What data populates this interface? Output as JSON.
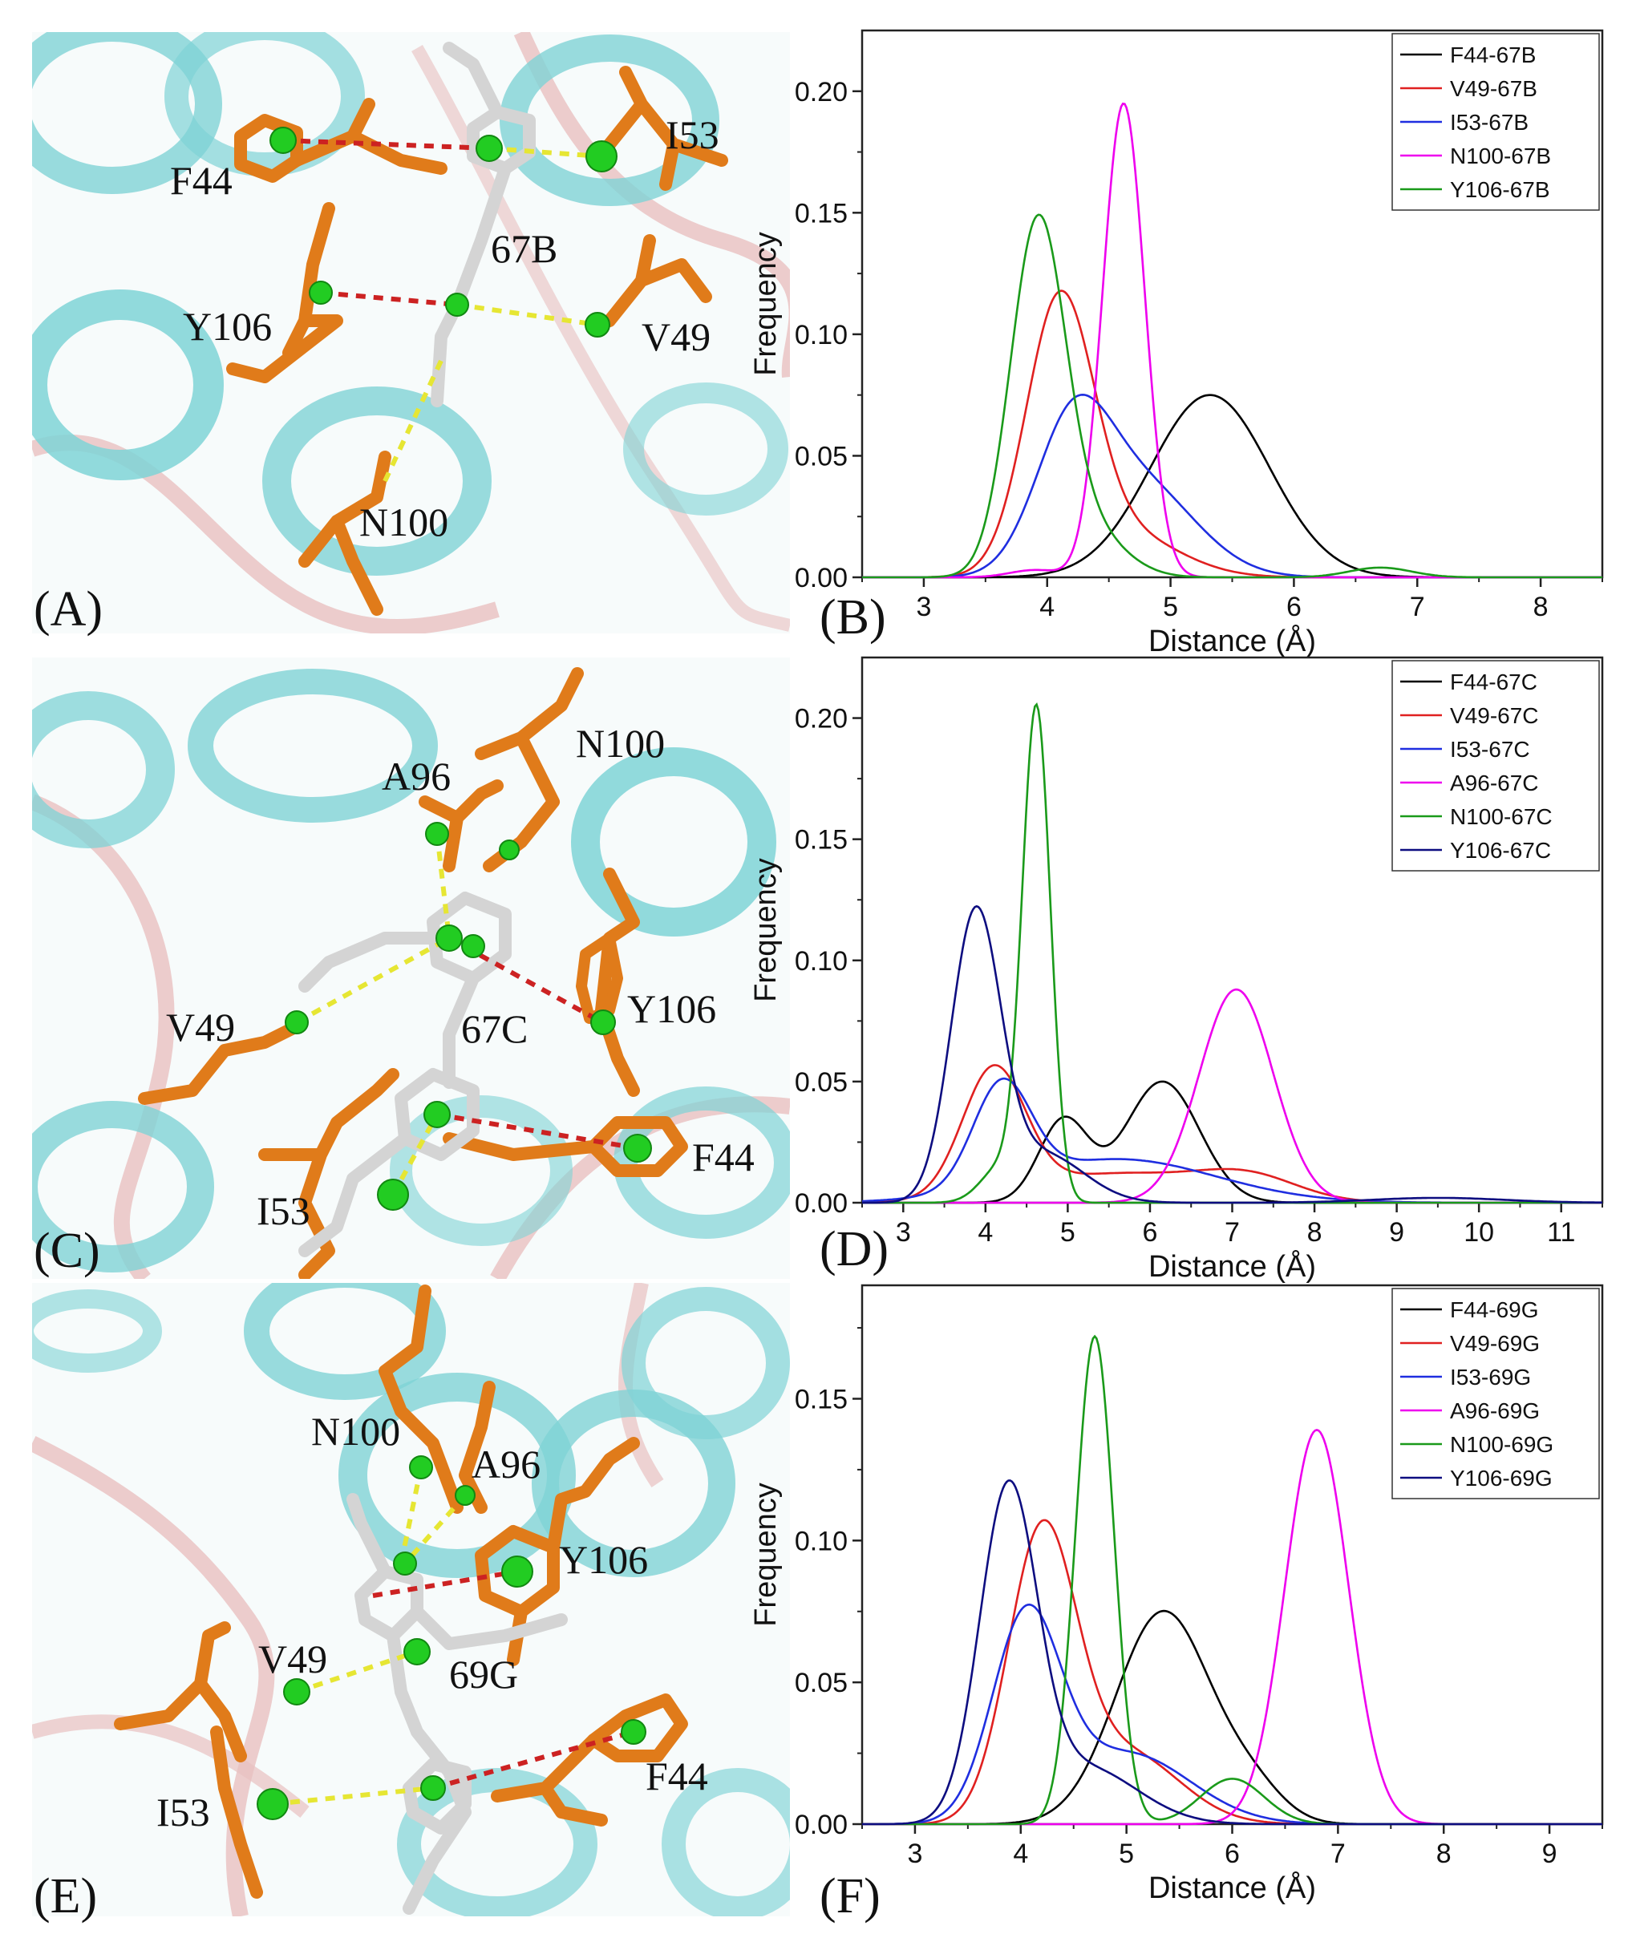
{
  "structure_panels": [
    {
      "panel": "(A)",
      "ligand": "67B",
      "residues": [
        "F44",
        "I53",
        "Y106",
        "V49",
        "N100"
      ]
    },
    {
      "panel": "(C)",
      "ligand": "67C",
      "residues": [
        "A96",
        "N100",
        "Y106",
        "V49",
        "F44",
        "I53"
      ]
    },
    {
      "panel": "(E)",
      "ligand": "69G",
      "residues": [
        "N100",
        "A96",
        "Y106",
        "V49",
        "F44",
        "I53"
      ]
    }
  ],
  "colors": {
    "helix": "#7fd3d6",
    "loop": "#e8c0c0",
    "residue": "#e07b1a",
    "ligand": "#d4d4d4",
    "centroid": "#22cc22",
    "hydrophobic_contact": "#e6e633",
    "pi_contact": "#cc2222"
  },
  "chart_data": [
    {
      "panel": "(B)",
      "type": "line",
      "xlabel": "Distance (Å)",
      "ylabel": "Frequency",
      "xlim": [
        2.5,
        8.5
      ],
      "ylim": [
        0,
        0.225
      ],
      "xticks": [
        3,
        4,
        5,
        6,
        7,
        8
      ],
      "yticks": [
        0.0,
        0.05,
        0.1,
        0.15,
        0.2
      ],
      "legend_position": "top-right",
      "series": [
        {
          "name": "F44-67B",
          "color": "#000000",
          "peaks": [
            {
              "mu": 5.32,
              "sigma": 0.48,
              "amp": 0.075
            }
          ]
        },
        {
          "name": "V49-67B",
          "color": "#e02020",
          "peaks": [
            {
              "mu": 4.1,
              "sigma": 0.27,
              "amp": 0.108
            },
            {
              "mu": 4.6,
              "sigma": 0.45,
              "amp": 0.018
            }
          ]
        },
        {
          "name": "I53-67B",
          "color": "#1f2ee0",
          "peaks": [
            {
              "mu": 4.2,
              "sigma": 0.3,
              "amp": 0.055
            },
            {
              "mu": 4.75,
              "sigma": 0.45,
              "amp": 0.038
            }
          ]
        },
        {
          "name": "N100-67B",
          "color": "#ee00ee",
          "peaks": [
            {
              "mu": 4.62,
              "sigma": 0.17,
              "amp": 0.195
            },
            {
              "mu": 3.9,
              "sigma": 0.2,
              "amp": 0.003
            }
          ]
        },
        {
          "name": "Y106-67B",
          "color": "#1a9a1a",
          "peaks": [
            {
              "mu": 3.92,
              "sigma": 0.22,
              "amp": 0.14
            },
            {
              "mu": 4.3,
              "sigma": 0.3,
              "amp": 0.02
            },
            {
              "mu": 6.7,
              "sigma": 0.25,
              "amp": 0.004
            }
          ]
        }
      ]
    },
    {
      "panel": "(D)",
      "type": "line",
      "xlabel": "Distance (Å)",
      "ylabel": "Frequency",
      "xlim": [
        2.5,
        11.5
      ],
      "ylim": [
        0,
        0.225
      ],
      "xticks": [
        3,
        4,
        5,
        6,
        7,
        8,
        9,
        10,
        11
      ],
      "yticks": [
        0.0,
        0.05,
        0.1,
        0.15,
        0.2
      ],
      "legend_position": "top-right",
      "series": [
        {
          "name": "F44-67C",
          "color": "#000000",
          "peaks": [
            {
              "mu": 4.95,
              "sigma": 0.3,
              "amp": 0.034
            },
            {
              "mu": 6.15,
              "sigma": 0.45,
              "amp": 0.05
            }
          ]
        },
        {
          "name": "V49-67C",
          "color": "#e02020",
          "peaks": [
            {
              "mu": 4.1,
              "sigma": 0.38,
              "amp": 0.052
            },
            {
              "mu": 5.6,
              "sigma": 1.1,
              "amp": 0.012
            },
            {
              "mu": 7.2,
              "sigma": 0.6,
              "amp": 0.009
            }
          ]
        },
        {
          "name": "I53-67C",
          "color": "#1f2ee0",
          "peaks": [
            {
              "mu": 4.2,
              "sigma": 0.35,
              "amp": 0.042
            },
            {
              "mu": 5.6,
              "sigma": 1.2,
              "amp": 0.018
            }
          ]
        },
        {
          "name": "A96-67C",
          "color": "#ee00ee",
          "peaks": [
            {
              "mu": 7.05,
              "sigma": 0.45,
              "amp": 0.088
            }
          ]
        },
        {
          "name": "N100-67C",
          "color": "#1a9a1a",
          "peaks": [
            {
              "mu": 4.62,
              "sigma": 0.17,
              "amp": 0.202
            },
            {
              "mu": 4.2,
              "sigma": 0.25,
              "amp": 0.015
            }
          ]
        },
        {
          "name": "Y106-67C",
          "color": "#0d0d80",
          "peaks": [
            {
              "mu": 3.88,
              "sigma": 0.3,
              "amp": 0.117
            },
            {
              "mu": 4.7,
              "sigma": 0.5,
              "amp": 0.02
            },
            {
              "mu": 9.5,
              "sigma": 0.8,
              "amp": 0.002
            }
          ]
        }
      ]
    },
    {
      "panel": "(F)",
      "type": "line",
      "xlabel": "Distance (Å)",
      "ylabel": "Frequency",
      "xlim": [
        2.5,
        9.5
      ],
      "ylim": [
        0,
        0.19
      ],
      "xticks": [
        3,
        4,
        5,
        6,
        7,
        8,
        9
      ],
      "yticks": [
        0.0,
        0.05,
        0.1,
        0.15
      ],
      "legend_position": "top-right",
      "series": [
        {
          "name": "F44-69G",
          "color": "#000000",
          "peaks": [
            {
              "mu": 5.35,
              "sigma": 0.45,
              "amp": 0.075
            },
            {
              "mu": 6.2,
              "sigma": 0.3,
              "amp": 0.01
            }
          ]
        },
        {
          "name": "V49-69G",
          "color": "#e02020",
          "peaks": [
            {
              "mu": 4.2,
              "sigma": 0.32,
              "amp": 0.1
            },
            {
              "mu": 5.0,
              "sigma": 0.5,
              "amp": 0.025
            }
          ]
        },
        {
          "name": "I53-69G",
          "color": "#1f2ee0",
          "peaks": [
            {
              "mu": 4.05,
              "sigma": 0.32,
              "amp": 0.07
            },
            {
              "mu": 5.0,
              "sigma": 0.6,
              "amp": 0.025
            }
          ]
        },
        {
          "name": "A96-69G",
          "color": "#ee00ee",
          "peaks": [
            {
              "mu": 6.8,
              "sigma": 0.3,
              "amp": 0.139
            }
          ]
        },
        {
          "name": "N100-69G",
          "color": "#1a9a1a",
          "peaks": [
            {
              "mu": 4.7,
              "sigma": 0.18,
              "amp": 0.172
            },
            {
              "mu": 6.0,
              "sigma": 0.3,
              "amp": 0.016
            }
          ]
        },
        {
          "name": "Y106-69G",
          "color": "#0d0d80",
          "peaks": [
            {
              "mu": 3.88,
              "sigma": 0.27,
              "amp": 0.114
            },
            {
              "mu": 4.6,
              "sigma": 0.5,
              "amp": 0.02
            }
          ]
        }
      ]
    }
  ]
}
